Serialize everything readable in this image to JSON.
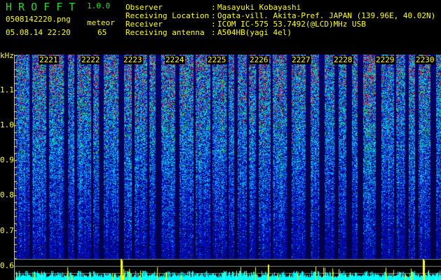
{
  "header": {
    "app_title": "H R O F F T",
    "version": "1.0.0",
    "filename": "0508142220.png",
    "datetime": "05.08.14 22:20",
    "meteor_label": "meteor",
    "meteor_count": "65"
  },
  "station_info": [
    {
      "label": "Observer",
      "value": "Masayuki Kobayashi"
    },
    {
      "label": "Receiving Location",
      "value": "Ogata-vill. Akita-Pref. JAPAN (139.96E, 40.02N)"
    },
    {
      "label": "Receiver",
      "value": "ICOM IC-575 53.7492(@LCD)MHz USB"
    },
    {
      "label": "Receiving antenna",
      "value": "A504HB(yagi 4el)"
    }
  ],
  "spectrogram": {
    "y_unit": "kHz",
    "y_ticks": [
      "1.1",
      "1.0",
      "0.9",
      "0.8",
      "0.7",
      "0.6"
    ],
    "time_labels": [
      "2221",
      "2222",
      "2223",
      "2224",
      "2225",
      "2226",
      "2227",
      "2228",
      "2229",
      "2230"
    ],
    "colors": {
      "text": "#ffff00",
      "title": "#22dd22",
      "histogram": "#00ffff",
      "meteor_bar": "#ffff00"
    }
  }
}
